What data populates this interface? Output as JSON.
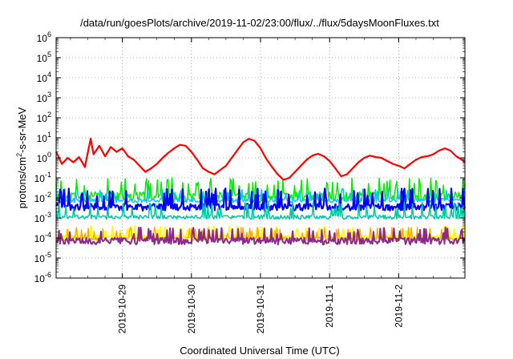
{
  "chart_data": {
    "type": "line",
    "title": "/data/run/goesPlots/archive/2019-11-02/23:00/flux/../flux/5daysMoonFluxes.txt",
    "xlabel": "Coordinated Universal Time (UTC)",
    "ylabel": "protons/cm²-s-sr-MeV",
    "ylabel_parts": {
      "base": "protons/cm",
      "exp": "2",
      "tail": "-s-sr-MeV"
    },
    "y_scale": "log",
    "ylim": [
      1e-06,
      1000000.0
    ],
    "y_ticks": [
      {
        "base": "10",
        "exp": "-6",
        "value": 1e-06
      },
      {
        "base": "10",
        "exp": "-5",
        "value": 1e-05
      },
      {
        "base": "10",
        "exp": "-4",
        "value": 0.0001
      },
      {
        "base": "10",
        "exp": "-3",
        "value": 0.001
      },
      {
        "base": "10",
        "exp": "-2",
        "value": 0.01
      },
      {
        "base": "10",
        "exp": "-1",
        "value": 0.1
      },
      {
        "base": "10",
        "exp": "0",
        "value": 1
      },
      {
        "base": "10",
        "exp": "1",
        "value": 10
      },
      {
        "base": "10",
        "exp": "2",
        "value": 100
      },
      {
        "base": "10",
        "exp": "3",
        "value": 1000
      },
      {
        "base": "10",
        "exp": "4",
        "value": 10000
      },
      {
        "base": "10",
        "exp": "5",
        "value": 100000
      },
      {
        "base": "10",
        "exp": "6",
        "value": 1000000
      }
    ],
    "xlim": [
      "2019-10-28T01:00",
      "2019-11-02T23:00"
    ],
    "x_ticks": [
      {
        "label": "2019-10-29",
        "date": "2019-10-29T00:00"
      },
      {
        "label": "2019-10-30",
        "date": "2019-10-30T00:00"
      },
      {
        "label": "2019-10-31",
        "date": "2019-10-31T00:00"
      },
      {
        "label": "2019-11-1",
        "date": "2019-11-01T00:00"
      },
      {
        "label": "2019-11-2",
        "date": "2019-11-02T00:00"
      }
    ],
    "grid": true,
    "series": [
      {
        "color": "#ff0000",
        "stroke": 2.2,
        "points": [
          [
            "2019-10-28T01:00",
            2.0
          ],
          [
            "2019-10-28T03:00",
            0.5
          ],
          [
            "2019-10-28T05:00",
            1.0
          ],
          [
            "2019-10-28T07:00",
            0.6
          ],
          [
            "2019-10-28T09:00",
            1.1
          ],
          [
            "2019-10-28T11:00",
            0.35
          ],
          [
            "2019-10-28T13:00",
            9.0
          ],
          [
            "2019-10-28T14:00",
            1.5
          ],
          [
            "2019-10-28T16:00",
            4.0
          ],
          [
            "2019-10-28T18:00",
            1.2
          ],
          [
            "2019-10-28T20:00",
            3.5
          ],
          [
            "2019-10-28T22:00",
            2.0
          ],
          [
            "2019-10-29T00:00",
            3.0
          ],
          [
            "2019-10-29T02:00",
            1.2
          ],
          [
            "2019-10-29T04:00",
            0.8
          ],
          [
            "2019-10-29T06:00",
            0.4
          ],
          [
            "2019-10-29T08:00",
            0.2
          ],
          [
            "2019-10-29T10:00",
            0.3
          ],
          [
            "2019-10-29T12:00",
            0.5
          ],
          [
            "2019-10-29T14:00",
            1.0
          ],
          [
            "2019-10-29T16:00",
            1.8
          ],
          [
            "2019-10-29T18:00",
            3.0
          ],
          [
            "2019-10-29T20:00",
            4.5
          ],
          [
            "2019-10-29T22:00",
            4.0
          ],
          [
            "2019-10-30T00:00",
            2.0
          ],
          [
            "2019-10-30T02:00",
            0.8
          ],
          [
            "2019-10-30T04:00",
            0.3
          ],
          [
            "2019-10-30T06:00",
            0.2
          ],
          [
            "2019-10-30T08:00",
            0.15
          ],
          [
            "2019-10-30T10:00",
            0.25
          ],
          [
            "2019-10-30T12:00",
            0.4
          ],
          [
            "2019-10-30T14:00",
            1.0
          ],
          [
            "2019-10-30T16:00",
            2.5
          ],
          [
            "2019-10-30T18:00",
            6.0
          ],
          [
            "2019-10-30T20:00",
            9.0
          ],
          [
            "2019-10-30T22:00",
            7.0
          ],
          [
            "2019-10-31T00:00",
            3.0
          ],
          [
            "2019-10-31T02:00",
            0.9
          ],
          [
            "2019-10-31T04:00",
            0.35
          ],
          [
            "2019-10-31T06:00",
            0.15
          ],
          [
            "2019-10-31T08:00",
            0.08
          ],
          [
            "2019-10-31T10:00",
            0.1
          ],
          [
            "2019-10-31T12:00",
            0.2
          ],
          [
            "2019-10-31T14:00",
            0.4
          ],
          [
            "2019-10-31T16:00",
            0.8
          ],
          [
            "2019-10-31T18:00",
            1.3
          ],
          [
            "2019-10-31T20:00",
            1.6
          ],
          [
            "2019-10-31T22:00",
            1.2
          ],
          [
            "2019-11-01T00:00",
            0.7
          ],
          [
            "2019-11-01T02:00",
            0.3
          ],
          [
            "2019-11-01T04:00",
            0.12
          ],
          [
            "2019-11-01T06:00",
            0.15
          ],
          [
            "2019-11-01T08:00",
            0.3
          ],
          [
            "2019-11-01T10:00",
            0.6
          ],
          [
            "2019-11-01T12:00",
            1.0
          ],
          [
            "2019-11-01T14:00",
            1.3
          ],
          [
            "2019-11-01T16:00",
            1.1
          ],
          [
            "2019-11-01T18:00",
            1.0
          ],
          [
            "2019-11-01T20:00",
            0.7
          ],
          [
            "2019-11-01T22:00",
            0.5
          ],
          [
            "2019-11-02T00:00",
            0.4
          ],
          [
            "2019-11-02T02:00",
            0.3
          ],
          [
            "2019-11-02T04:00",
            0.5
          ],
          [
            "2019-11-02T06:00",
            0.8
          ],
          [
            "2019-11-02T08:00",
            1.1
          ],
          [
            "2019-11-02T10:00",
            1.2
          ],
          [
            "2019-11-02T12:00",
            1.5
          ],
          [
            "2019-11-02T14:00",
            2.3
          ],
          [
            "2019-11-02T16:00",
            3.0
          ],
          [
            "2019-11-02T18:00",
            2.3
          ],
          [
            "2019-11-02T20:00",
            1.2
          ],
          [
            "2019-11-02T22:00",
            0.8
          ],
          [
            "2019-11-02T23:00",
            0.6
          ]
        ]
      },
      {
        "color": "#00ee00",
        "stroke": 1.5,
        "base": 0.012,
        "spike": 0.1,
        "amp": 0.45,
        "seed": 11
      },
      {
        "color": "#00c8ff",
        "stroke": 1.5,
        "base": 0.0075,
        "spike": 0.03,
        "amp": 0.22,
        "seed": 23
      },
      {
        "color": "#0000ff",
        "stroke": 2.2,
        "base": 0.0035,
        "spike": 0.03,
        "amp": 0.35,
        "seed": 37
      },
      {
        "color": "#00c8a0",
        "stroke": 1.5,
        "base": 0.0011,
        "spike": 0.006,
        "amp": 0.2,
        "seed": 41
      },
      {
        "color": "#ffff00",
        "stroke": 2.0,
        "base": 0.00012,
        "spike": 0.0004,
        "amp": 0.12,
        "seed": 53
      },
      {
        "color": "#ffa500",
        "stroke": 1.3,
        "base": 9e-05,
        "spike": 0.00035,
        "amp": 0.18,
        "seed": 67
      },
      {
        "color": "#8b2a8b",
        "stroke": 2.0,
        "base": 7e-05,
        "spike": 0.00035,
        "amp": 0.35,
        "seed": 79
      }
    ]
  }
}
